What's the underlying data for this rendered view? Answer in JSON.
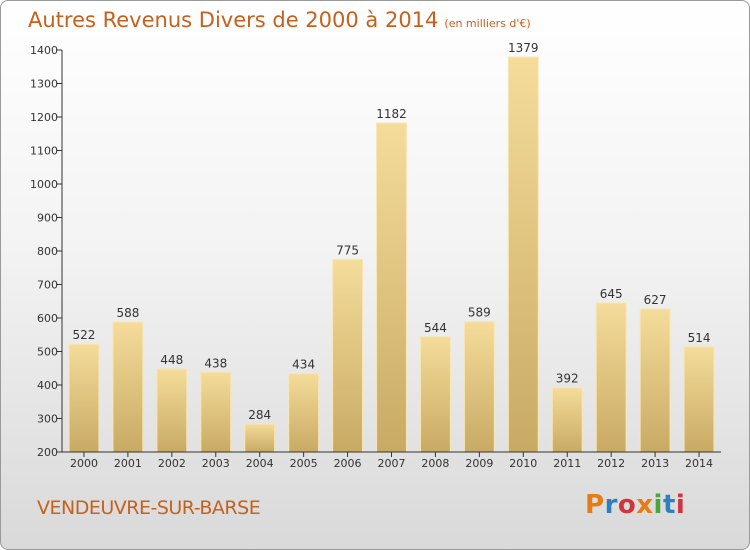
{
  "header": {
    "title": "Autres Revenus Divers de 2000 à 2014",
    "subtitle": "(en milliers d'€)"
  },
  "footer": {
    "commune": "VENDEUVRE-SUR-BARSE",
    "logo": "Proxiti"
  },
  "colors": {
    "title": "#c5611d",
    "bar_light": "#f5dc9a",
    "bar_dark": "#c8aa64",
    "logo_letters": [
      "#e57c16",
      "#2e7fc2",
      "#d1343a",
      "#e57c16",
      "#4aa63c",
      "#2e7fc2",
      "#d1343a"
    ]
  },
  "chart_data": {
    "type": "bar",
    "categories": [
      "2000",
      "2001",
      "2002",
      "2003",
      "2004",
      "2005",
      "2006",
      "2007",
      "2008",
      "2009",
      "2010",
      "2011",
      "2012",
      "2013",
      "2014"
    ],
    "values": [
      522,
      588,
      448,
      438,
      284,
      434,
      775,
      1182,
      544,
      589,
      1379,
      392,
      645,
      627,
      514
    ],
    "y_ticks": [
      200,
      300,
      400,
      500,
      600,
      700,
      800,
      900,
      1000,
      1100,
      1200,
      1300,
      1400
    ],
    "ylim": [
      200,
      1400
    ],
    "grid": false,
    "legend": "none"
  }
}
